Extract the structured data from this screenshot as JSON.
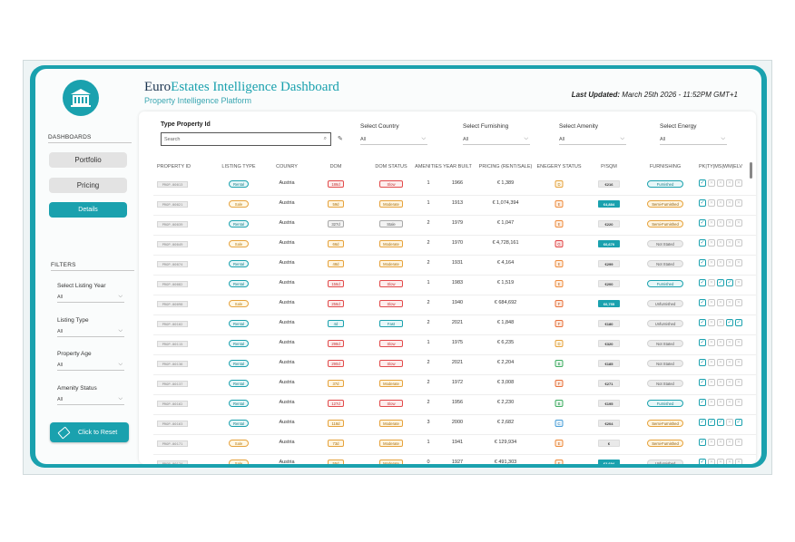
{
  "header": {
    "title_part1": "Euro",
    "title_part2": "Estates Intelligence Dashboard",
    "subtitle": "Property Intelligence Platform",
    "last_updated_label": "Last Updated:",
    "last_updated_value": "March 25th 2026 - 11:52PM GMT+1",
    "logo_icon": "house-icon"
  },
  "sidebar": {
    "dashboards_label": "DASHBOARDS",
    "nav": [
      {
        "label": "Portfolio",
        "active": false
      },
      {
        "label": "Pricing",
        "active": false
      },
      {
        "label": "Details",
        "active": true
      }
    ],
    "filters_label": "FILTERS",
    "filters": [
      {
        "label": "Select Listing Year",
        "value": "All"
      },
      {
        "label": "Listing Type",
        "value": "All"
      },
      {
        "label": "Property Age",
        "value": "All"
      },
      {
        "label": "Amenity Status",
        "value": "All"
      }
    ],
    "reset_label": "Click to Reset"
  },
  "search": {
    "label": "Type Property Id",
    "placeholder": "Search"
  },
  "top_filters": [
    {
      "label": "Select Country",
      "value": "All"
    },
    {
      "label": "Select Furnishing",
      "value": "All"
    },
    {
      "label": "Select Amenity",
      "value": "All"
    },
    {
      "label": "Select Energy",
      "value": "All"
    }
  ],
  "table": {
    "headers": [
      "PROPERTY ID",
      "LISTING TYPE",
      "COUNRY",
      "DOM",
      "DOM STATUS",
      "AMENITIES",
      "YEAR BUILT",
      "PRICING (RENT/SALE)",
      "ENEGERY STATUS",
      "P/SQM",
      "FURNISHING",
      "PK|TY|MS|WM|ELV"
    ],
    "rows": [
      {
        "id": "PROP-00013",
        "type": "Rental",
        "country": "Austria",
        "dom": "186d",
        "dom_status": "Slow",
        "amenities": "1",
        "year": "1966",
        "price": "€ 1,389",
        "energy": "D",
        "psqm": "€216",
        "psqm_hi": false,
        "furnishing": "Furnished",
        "checks": [
          1,
          0,
          0,
          0,
          0
        ]
      },
      {
        "id": "PROP-00021",
        "type": "Sale",
        "country": "Austria",
        "dom": "59d",
        "dom_status": "Moderate",
        "amenities": "1",
        "year": "1913",
        "price": "€ 1,074,394",
        "energy": "E",
        "psqm": "€4,884",
        "psqm_hi": true,
        "furnishing": "Semi-Furnished",
        "checks": [
          1,
          0,
          0,
          0,
          0
        ]
      },
      {
        "id": "PROP-00039",
        "type": "Rental",
        "country": "Austria",
        "dom": "327d",
        "dom_status": "Stale",
        "amenities": "2",
        "year": "1979",
        "price": "€ 1,047",
        "energy": "E",
        "psqm": "€220",
        "psqm_hi": false,
        "furnishing": "Semi-Furnished",
        "checks": [
          1,
          0,
          0,
          0,
          0
        ]
      },
      {
        "id": "PROP-00049",
        "type": "Sale",
        "country": "Austria",
        "dom": "66d",
        "dom_status": "Moderate",
        "amenities": "2",
        "year": "1970",
        "price": "€ 4,728,161",
        "energy": "G",
        "psqm": "€6,670",
        "psqm_hi": true,
        "furnishing": "Not Stated",
        "checks": [
          1,
          0,
          0,
          0,
          0
        ]
      },
      {
        "id": "PROP-00074",
        "type": "Rental",
        "country": "Austria",
        "dom": "48d",
        "dom_status": "Moderate",
        "amenities": "2",
        "year": "1931",
        "price": "€ 4,164",
        "energy": "E",
        "psqm": "€299",
        "psqm_hi": false,
        "furnishing": "Not Stated",
        "checks": [
          1,
          0,
          0,
          0,
          0
        ]
      },
      {
        "id": "PROP-00082",
        "type": "Rental",
        "country": "Austria",
        "dom": "156d",
        "dom_status": "Slow",
        "amenities": "1",
        "year": "1983",
        "price": "€ 1,519",
        "energy": "E",
        "psqm": "€200",
        "psqm_hi": false,
        "furnishing": "Furnished",
        "checks": [
          1,
          0,
          1,
          1,
          0
        ]
      },
      {
        "id": "PROP-00098",
        "type": "Sale",
        "country": "Austria",
        "dom": "256d",
        "dom_status": "Slow",
        "amenities": "2",
        "year": "1940",
        "price": "€ 684,692",
        "energy": "F",
        "psqm": "€6,755",
        "psqm_hi": true,
        "furnishing": "Unfurnished",
        "checks": [
          1,
          0,
          0,
          0,
          0
        ]
      },
      {
        "id": "PROP-00102",
        "type": "Rental",
        "country": "Austria",
        "dom": "4d",
        "dom_status": "Fast",
        "amenities": "2",
        "year": "2021",
        "price": "€ 1,848",
        "energy": "F",
        "psqm": "€180",
        "psqm_hi": false,
        "furnishing": "Unfurnished",
        "checks": [
          1,
          0,
          0,
          1,
          1
        ]
      },
      {
        "id": "PROP-00115",
        "type": "Rental",
        "country": "Austria",
        "dom": "298d",
        "dom_status": "Slow",
        "amenities": "1",
        "year": "1975",
        "price": "€ 6,235",
        "energy": "D",
        "psqm": "€320",
        "psqm_hi": false,
        "furnishing": "Not Stated",
        "checks": [
          1,
          0,
          0,
          0,
          0
        ]
      },
      {
        "id": "PROP-00136",
        "type": "Rental",
        "country": "Austria",
        "dom": "290d",
        "dom_status": "Slow",
        "amenities": "2",
        "year": "2021",
        "price": "€ 2,204",
        "energy": "B",
        "psqm": "€185",
        "psqm_hi": false,
        "furnishing": "Not Stated",
        "checks": [
          1,
          0,
          0,
          0,
          0
        ]
      },
      {
        "id": "PROP-00137",
        "type": "Rental",
        "country": "Austria",
        "dom": "37d",
        "dom_status": "Moderate",
        "amenities": "2",
        "year": "1972",
        "price": "€ 3,008",
        "energy": "F",
        "psqm": "€271",
        "psqm_hi": false,
        "furnishing": "Not Stated",
        "checks": [
          1,
          0,
          0,
          0,
          0
        ]
      },
      {
        "id": "PROP-00162",
        "type": "Rental",
        "country": "Austria",
        "dom": "127d",
        "dom_status": "Slow",
        "amenities": "2",
        "year": "1956",
        "price": "€ 2,230",
        "energy": "B",
        "psqm": "€195",
        "psqm_hi": false,
        "furnishing": "Furnished",
        "checks": [
          1,
          0,
          0,
          0,
          0
        ]
      },
      {
        "id": "PROP-00163",
        "type": "Rental",
        "country": "Austria",
        "dom": "118d",
        "dom_status": "Moderate",
        "amenities": "3",
        "year": "2000",
        "price": "€ 2,682",
        "energy": "C",
        "psqm": "€204",
        "psqm_hi": false,
        "furnishing": "Semi-Furnished",
        "checks": [
          1,
          1,
          1,
          0,
          1
        ]
      },
      {
        "id": "PROP-00171",
        "type": "Sale",
        "country": "Austria",
        "dom": "73d",
        "dom_status": "Moderate",
        "amenities": "1",
        "year": "1941",
        "price": "€ 129,934",
        "energy": "E",
        "psqm": "€",
        "psqm_hi": false,
        "furnishing": "Semi-Furnished",
        "checks": [
          1,
          0,
          0,
          0,
          0
        ]
      },
      {
        "id": "PROP-00174",
        "type": "Sale",
        "country": "Austria",
        "dom": "55d",
        "dom_status": "Moderate",
        "amenities": "0",
        "year": "1927",
        "price": "€ 491,303",
        "energy": "E",
        "psqm": "€3,694",
        "psqm_hi": true,
        "furnishing": "Unfurnished",
        "checks": [
          1,
          0,
          0,
          0,
          0
        ]
      }
    ]
  },
  "colors": {
    "accent": "#1aa1ae",
    "slow": "#e24b4b",
    "moderate": "#e6a23c",
    "fast": "#1aa1ae",
    "stale": "#9a9a9a"
  }
}
